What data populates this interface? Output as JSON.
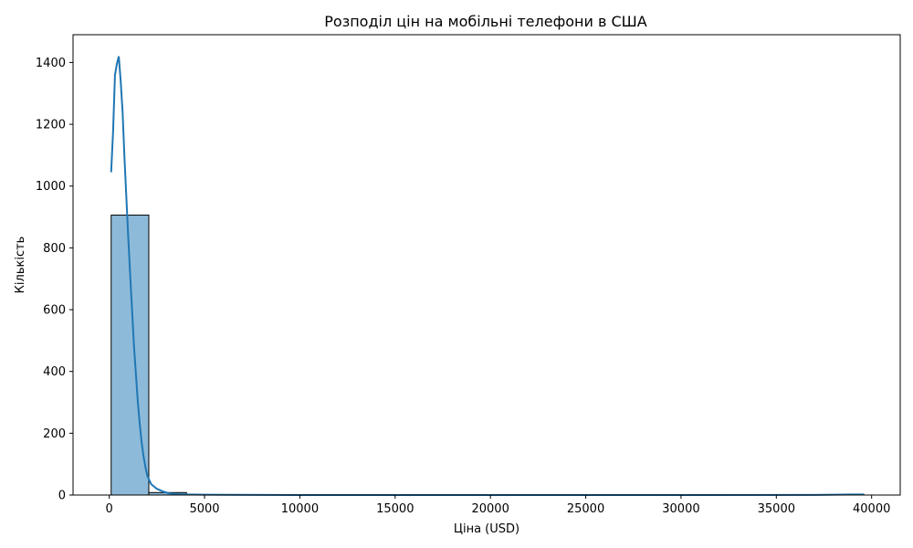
{
  "chart_data": {
    "type": "bar",
    "title": "Розподіл цін на мобільні телефони в США",
    "xlabel": "Ціна (USD)",
    "ylabel": "Кількість",
    "xlim": [
      -1900,
      41500
    ],
    "ylim": [
      0,
      1490
    ],
    "xticks": [
      0,
      5000,
      10000,
      15000,
      20000,
      25000,
      30000,
      35000,
      40000
    ],
    "yticks": [
      0,
      200,
      400,
      600,
      800,
      1000,
      1200,
      1400
    ],
    "bins": [
      {
        "x0": 100,
        "x1": 2075,
        "count": 906
      },
      {
        "x0": 2075,
        "x1": 4050,
        "count": 8
      },
      {
        "x0": 4050,
        "x1": 6025,
        "count": 1
      },
      {
        "x0": 6025,
        "x1": 8000,
        "count": 0
      },
      {
        "x0": 8000,
        "x1": 9975,
        "count": 0
      },
      {
        "x0": 9975,
        "x1": 11950,
        "count": 0
      },
      {
        "x0": 11950,
        "x1": 13925,
        "count": 0
      },
      {
        "x0": 13925,
        "x1": 15900,
        "count": 0
      },
      {
        "x0": 15900,
        "x1": 17875,
        "count": 0
      },
      {
        "x0": 17875,
        "x1": 19850,
        "count": 0
      },
      {
        "x0": 19850,
        "x1": 21825,
        "count": 0
      },
      {
        "x0": 21825,
        "x1": 23800,
        "count": 0
      },
      {
        "x0": 23800,
        "x1": 25775,
        "count": 0
      },
      {
        "x0": 25775,
        "x1": 27750,
        "count": 0
      },
      {
        "x0": 27750,
        "x1": 29725,
        "count": 0
      },
      {
        "x0": 29725,
        "x1": 31700,
        "count": 0
      },
      {
        "x0": 31700,
        "x1": 33675,
        "count": 0
      },
      {
        "x0": 33675,
        "x1": 35650,
        "count": 0
      },
      {
        "x0": 35650,
        "x1": 37625,
        "count": 0
      },
      {
        "x0": 37625,
        "x1": 39600,
        "count": 1
      }
    ],
    "kde": {
      "x": [
        100,
        200,
        300,
        400,
        500,
        600,
        700,
        800,
        900,
        1000,
        1100,
        1200,
        1300,
        1400,
        1500,
        1600,
        1700,
        1800,
        1900,
        2000,
        2200,
        2500,
        2800,
        3100,
        3500,
        4000,
        5000,
        10000,
        20000,
        30000,
        37000,
        38000,
        39000,
        39600
      ],
      "y": [
        1045,
        1175,
        1360,
        1395,
        1420,
        1340,
        1240,
        1090,
        960,
        830,
        710,
        595,
        480,
        390,
        300,
        230,
        170,
        125,
        90,
        62,
        35,
        20,
        12,
        6,
        3,
        2,
        1,
        0,
        0,
        0,
        0.5,
        1,
        2,
        2
      ]
    },
    "colors": {
      "bar_fill": "#8ebad9",
      "bar_edge": "#000000",
      "kde_line": "#1f77b4"
    },
    "grid": false,
    "legend": "none"
  }
}
